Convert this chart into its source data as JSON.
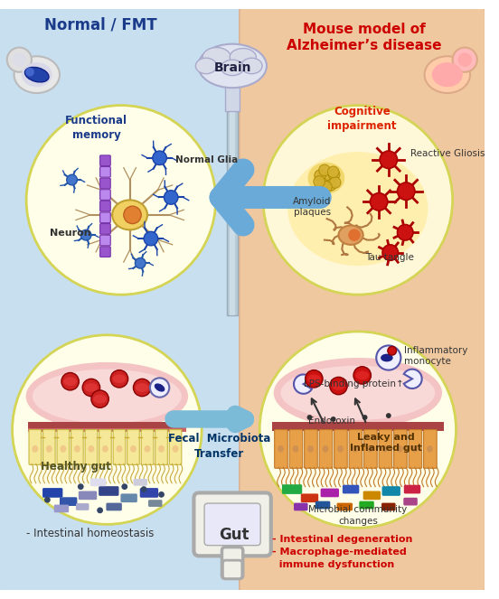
{
  "title_left": "Normal / FMT",
  "title_right": "Mouse model of\nAlzheimer’s disease",
  "title_left_color": "#1a3a8a",
  "title_right_color": "#cc0000",
  "bg_left_color": "#c8dff0",
  "bg_right_color": "#f0c8a0",
  "brain_label": "Brain",
  "gut_label": "Gut",
  "fmt_label": "Fecal  Microbiota\nTransfer",
  "normal_circle_label": "Functional\nmemory",
  "cognitive_label": "Cognitive\nimpairment",
  "healthy_gut_label": "Healthy gut",
  "intestinal_homeostasis": "- Intestinal homeostasis",
  "right_bottom_labels": "- Intestinal degeneration\n- Macrophage-mediated\n  immune dysfunction",
  "neuron_label": "Neuron",
  "normal_glia_label": "Normal Glia",
  "amyloid_label": "Amyloid\nplaques",
  "reactive_label": "Reactive Gliosis",
  "tau_label": "Tau tangle",
  "inflammatory_label": "Inflammatory\nmonocyte",
  "lps_label": "LPS-binding protein↑",
  "leaky_label": "Leaky and\nInflamed gut",
  "endotoxin_label": "Endotoxin",
  "microbial_label": "Microbial community\nchanges"
}
